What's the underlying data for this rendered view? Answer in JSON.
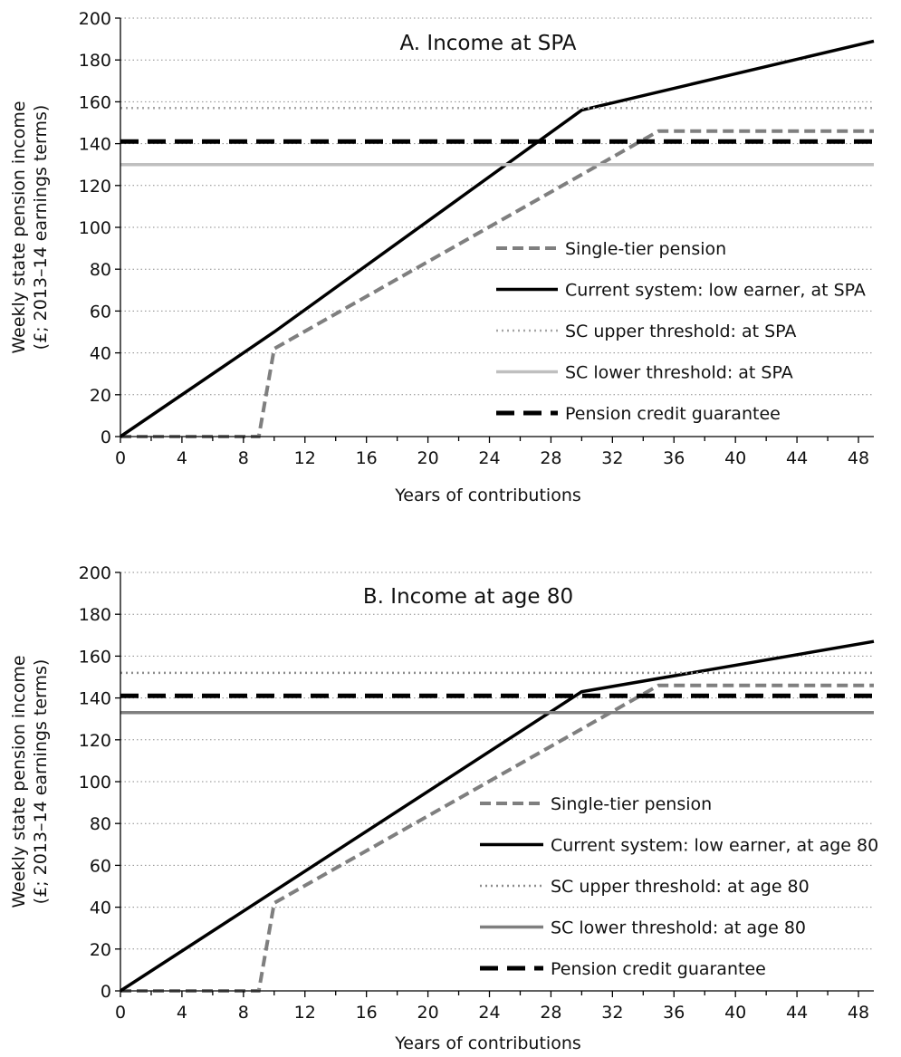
{
  "chart_data": [
    {
      "type": "line",
      "title": "A. Income at SPA",
      "xlabel": "Years of contributions",
      "ylabel_line1": "Weekly state pension income",
      "ylabel_line2": "(£; 2013–14 earnings terms)",
      "xlim": [
        0,
        49
      ],
      "ylim": [
        0,
        200
      ],
      "xticks": [
        0,
        4,
        8,
        12,
        16,
        20,
        24,
        28,
        32,
        36,
        40,
        44,
        48
      ],
      "yticks": [
        0,
        20,
        40,
        60,
        80,
        100,
        120,
        140,
        160,
        180,
        200
      ],
      "grid": "horizontal dotted",
      "legend_position": "center-right",
      "series": [
        {
          "name": "Single-tier pension",
          "color": "#7f7f7f",
          "style": "dashed",
          "x": [
            0,
            9,
            10,
            35,
            49
          ],
          "y": [
            0,
            0,
            42,
            146,
            146
          ]
        },
        {
          "name": "Current system: low earner, at SPA",
          "color": "#000000",
          "style": "solid",
          "x": [
            0,
            10,
            30,
            49
          ],
          "y": [
            0,
            50,
            156,
            189
          ]
        },
        {
          "name": "SC upper threshold: at SPA",
          "color": "#a6a6a6",
          "style": "dotted",
          "x": [
            0,
            49
          ],
          "y": [
            157,
            157
          ]
        },
        {
          "name": "SC lower threshold: at SPA",
          "color": "#bfbfbf",
          "style": "solid",
          "x": [
            0,
            49
          ],
          "y": [
            130,
            130
          ]
        },
        {
          "name": "Pension credit guarantee",
          "color": "#000000",
          "style": "longdash",
          "x": [
            0,
            49
          ],
          "y": [
            141,
            141
          ]
        }
      ]
    },
    {
      "type": "line",
      "title": "B. Income at age 80",
      "xlabel": "Years of contributions",
      "ylabel_line1": "Weekly state pension income",
      "ylabel_line2": "(£; 2013–14 earnings terms)",
      "xlim": [
        0,
        49
      ],
      "ylim": [
        0,
        200
      ],
      "xticks": [
        0,
        4,
        8,
        12,
        16,
        20,
        24,
        28,
        32,
        36,
        40,
        44,
        48
      ],
      "yticks": [
        0,
        20,
        40,
        60,
        80,
        100,
        120,
        140,
        160,
        180,
        200
      ],
      "grid": "horizontal dotted",
      "legend_position": "center-right",
      "series": [
        {
          "name": "Single-tier pension",
          "color": "#7f7f7f",
          "style": "dashed",
          "x": [
            0,
            9,
            10,
            35,
            49
          ],
          "y": [
            0,
            0,
            42,
            146,
            146
          ]
        },
        {
          "name": "Current system: low earner, at age 80",
          "color": "#000000",
          "style": "solid",
          "x": [
            0,
            30,
            49
          ],
          "y": [
            0,
            143,
            167
          ]
        },
        {
          "name": "SC upper threshold: at age 80",
          "color": "#8c8c8c",
          "style": "dotted",
          "x": [
            0,
            49
          ],
          "y": [
            152,
            152
          ]
        },
        {
          "name": "SC lower threshold: at age 80",
          "color": "#7f7f7f",
          "style": "solid",
          "x": [
            0,
            49
          ],
          "y": [
            133,
            133
          ]
        },
        {
          "name": "Pension credit guarantee",
          "color": "#000000",
          "style": "longdash",
          "x": [
            0,
            49
          ],
          "y": [
            141,
            141
          ]
        }
      ]
    }
  ]
}
